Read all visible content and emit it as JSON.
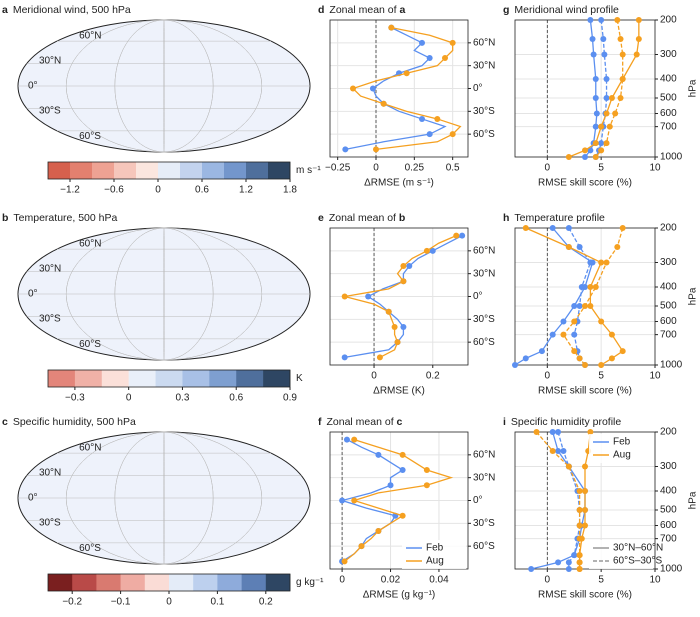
{
  "chart_data": [
    {
      "type": "map",
      "label": "a",
      "title": "Meridional wind, 500 hPa",
      "lat_labels": [
        "60°N",
        "30°N",
        "0°",
        "30°S",
        "60°S"
      ],
      "colorbar": {
        "clim": [
          -1.5,
          1.8
        ],
        "colors": [
          "#d6604d",
          "#e3806f",
          "#eea293",
          "#f6c6bb",
          "#fbe6df",
          "#e6edf8",
          "#c3d3ee",
          "#9bb7e2",
          "#7396cc",
          "#4f6f9c",
          "#2e4663"
        ],
        "ticks": [
          {
            "value": -1.2,
            "label": "−1.2"
          },
          {
            "value": -0.6,
            "label": "−0.6"
          },
          0,
          0.6,
          1.2,
          1.8
        ],
        "unit": "m s⁻¹"
      }
    },
    {
      "type": "map",
      "label": "b",
      "title": "Temperature, 500 hPa",
      "lat_labels": [
        "60°N",
        "30°N",
        "0°",
        "30°S",
        "60°S"
      ],
      "colorbar": {
        "clim": [
          -0.45,
          0.9
        ],
        "colors": [
          "#e3857a",
          "#f0b1a7",
          "#fbe0d9",
          "#e9eff9",
          "#cbdaf0",
          "#a8c0e6",
          "#7e9fd0",
          "#4f6f9c",
          "#2e4663"
        ],
        "ticks": [
          {
            "value": -0.3,
            "label": "−0.3"
          },
          0,
          0.3,
          0.6,
          0.9
        ],
        "unit": "K"
      }
    },
    {
      "type": "map",
      "label": "c",
      "title": "Specific humidity, 500 hPa",
      "lat_labels": [
        "60°N",
        "30°N",
        "0°",
        "30°S",
        "60°S"
      ],
      "colorbar": {
        "clim": [
          -0.25,
          0.25
        ],
        "colors": [
          "#7a1f1f",
          "#b94a48",
          "#d97a70",
          "#efaca3",
          "#fadcd6",
          "#e4ecf8",
          "#bdd0ee",
          "#8eabdb",
          "#5d7fb5",
          "#2e4663"
        ],
        "ticks": [
          {
            "value": -0.2,
            "label": "−0.2"
          },
          {
            "value": -0.1,
            "label": "−0.1"
          },
          0,
          0.1,
          0.2
        ],
        "unit": "g kg⁻¹"
      }
    },
    {
      "type": "line",
      "label": "d",
      "title": "Zonal mean of ",
      "ref": "a",
      "xlabel": "ΔRMSE (m s⁻¹)",
      "zero_line": true,
      "xlim": [
        -0.3,
        0.6
      ],
      "xticks": [
        {
          "value": -0.25,
          "label": "−0.25"
        },
        0,
        0.25,
        0.5
      ],
      "y": [
        -80,
        -70,
        -60,
        -50,
        -40,
        -30,
        -20,
        -10,
        0,
        10,
        20,
        30,
        40,
        50,
        60,
        70,
        80
      ],
      "ylim": [
        -90,
        90
      ],
      "yticks": [
        {
          "value": -60,
          "label": "60°S"
        },
        {
          "value": -30,
          "label": "30°S"
        },
        {
          "value": 0,
          "label": "0°"
        },
        {
          "value": 30,
          "label": "30°N"
        },
        {
          "value": 60,
          "label": "60°N"
        }
      ],
      "series": [
        {
          "color": "#5b8ff0",
          "values": [
            -0.2,
            0.05,
            0.35,
            0.45,
            0.3,
            0.15,
            0.05,
            0.0,
            -0.02,
            0.05,
            0.15,
            0.3,
            0.35,
            0.25,
            0.3,
            0.2,
            0.1
          ]
        },
        {
          "color": "#f5a020",
          "values": [
            0.0,
            0.4,
            0.5,
            0.55,
            0.4,
            0.2,
            0.05,
            -0.1,
            -0.15,
            0.0,
            0.2,
            0.4,
            0.45,
            0.5,
            0.5,
            0.35,
            0.1
          ]
        }
      ]
    },
    {
      "type": "line",
      "label": "e",
      "title": "Zonal mean of ",
      "ref": "b",
      "xlabel": "ΔRMSE (K)",
      "zero_line": true,
      "xlim": [
        -0.15,
        0.32
      ],
      "xticks": [
        0,
        0.2
      ],
      "y": [
        -80,
        -70,
        -60,
        -50,
        -40,
        -30,
        -20,
        -10,
        0,
        10,
        20,
        30,
        40,
        50,
        60,
        70,
        80
      ],
      "ylim": [
        -90,
        90
      ],
      "yticks": [
        {
          "value": -60,
          "label": "60°S"
        },
        {
          "value": -30,
          "label": "30°S"
        },
        {
          "value": 0,
          "label": "0°"
        },
        {
          "value": 30,
          "label": "30°N"
        },
        {
          "value": 60,
          "label": "60°N"
        }
      ],
      "series": [
        {
          "color": "#5b8ff0",
          "values": [
            -0.1,
            0.05,
            0.08,
            0.1,
            0.1,
            0.08,
            0.05,
            0.02,
            -0.02,
            0.03,
            0.1,
            0.1,
            0.12,
            0.15,
            0.2,
            0.25,
            0.3
          ]
        },
        {
          "color": "#f5a020",
          "values": [
            0.02,
            0.07,
            0.08,
            0.07,
            0.07,
            0.06,
            0.05,
            0.0,
            -0.1,
            0.05,
            0.1,
            0.08,
            0.1,
            0.13,
            0.18,
            0.22,
            0.28
          ]
        }
      ]
    },
    {
      "type": "line",
      "label": "f",
      "title": "Zonal mean of ",
      "ref": "c",
      "xlabel": "ΔRMSE (g kg⁻¹)",
      "zero_line": true,
      "xlim": [
        -0.005,
        0.052
      ],
      "xticks": [
        0,
        0.02,
        0.04
      ],
      "y": [
        -80,
        -70,
        -60,
        -50,
        -40,
        -30,
        -20,
        -10,
        0,
        10,
        20,
        30,
        40,
        50,
        60,
        70,
        80
      ],
      "ylim": [
        -90,
        90
      ],
      "yticks": [
        {
          "value": -60,
          "label": "60°S"
        },
        {
          "value": -30,
          "label": "30°S"
        },
        {
          "value": 0,
          "label": "0°"
        },
        {
          "value": 30,
          "label": "30°N"
        },
        {
          "value": 60,
          "label": "60°N"
        }
      ],
      "series": [
        {
          "color": "#5b8ff0",
          "values": [
            0.0,
            0.005,
            0.008,
            0.01,
            0.015,
            0.02,
            0.022,
            0.01,
            0.0,
            0.012,
            0.02,
            0.02,
            0.025,
            0.02,
            0.015,
            0.008,
            0.002
          ]
        },
        {
          "color": "#f5a020",
          "values": [
            0.001,
            0.005,
            0.008,
            0.012,
            0.015,
            0.02,
            0.025,
            0.015,
            0.005,
            0.015,
            0.035,
            0.045,
            0.035,
            0.03,
            0.025,
            0.015,
            0.005
          ]
        }
      ],
      "legend": {
        "corner": "lower-right",
        "entries": [
          {
            "label": "Feb",
            "color": "#5b8ff0",
            "dash": false
          },
          {
            "label": "Aug",
            "color": "#f5a020",
            "dash": false
          }
        ]
      }
    },
    {
      "type": "line",
      "label": "g",
      "title": "Meridional wind profile",
      "xlabel": "RMSE skill score (%)",
      "ylabel": "hPa",
      "zero_line": true,
      "ylog": true,
      "xlim": [
        -3,
        10
      ],
      "xticks": [
        0,
        5,
        10
      ],
      "y": [
        200,
        250,
        300,
        400,
        500,
        600,
        700,
        850,
        925,
        1000
      ],
      "ylim": [
        1000,
        200
      ],
      "yticks": [
        200,
        300,
        400,
        500,
        600,
        700,
        1000
      ],
      "series": [
        {
          "color": "#5b8ff0",
          "dash": false,
          "values": [
            4,
            4.2,
            4.3,
            4.5,
            4.5,
            4.6,
            4.5,
            4.3,
            4.0,
            3.5
          ]
        },
        {
          "color": "#5b8ff0",
          "dash": true,
          "values": [
            5,
            5.2,
            5.3,
            5.5,
            5.5,
            5.4,
            5.2,
            5,
            4.8,
            4.5
          ]
        },
        {
          "color": "#f5a020",
          "dash": false,
          "values": [
            8.5,
            8.5,
            8.3,
            7,
            6,
            5.5,
            5,
            4.5,
            3.5,
            2
          ]
        },
        {
          "color": "#f5a020",
          "dash": true,
          "values": [
            6.5,
            6.8,
            7,
            7,
            6.8,
            6.3,
            5.8,
            5.5,
            5.0,
            4.5
          ]
        }
      ]
    },
    {
      "type": "line",
      "label": "h",
      "title": "Temperature profile",
      "xlabel": "RMSE skill score (%)",
      "ylabel": "hPa",
      "zero_line": true,
      "ylog": true,
      "xlim": [
        -3,
        10
      ],
      "xticks": [
        0,
        5,
        10
      ],
      "y": [
        200,
        250,
        300,
        400,
        500,
        600,
        700,
        850,
        925,
        1000
      ],
      "ylim": [
        1000,
        200
      ],
      "yticks": [
        200,
        300,
        400,
        500,
        600,
        700,
        1000
      ],
      "series": [
        {
          "color": "#5b8ff0",
          "dash": false,
          "values": [
            0.5,
            2,
            4.2,
            3.5,
            2.5,
            1.5,
            0.5,
            -0.5,
            -2,
            -3
          ]
        },
        {
          "color": "#5b8ff0",
          "dash": true,
          "values": [
            2,
            3,
            4,
            3.2,
            3,
            2.8,
            2.5,
            2.8,
            3,
            3.5
          ]
        },
        {
          "color": "#f5a020",
          "dash": false,
          "values": [
            -2,
            2,
            5,
            4,
            4,
            5,
            6,
            7,
            6,
            5
          ]
        },
        {
          "color": "#f5a020",
          "dash": true,
          "values": [
            7,
            6.5,
            5.5,
            4.5,
            3.5,
            2.5,
            1.5,
            2.5,
            3,
            3.5
          ]
        }
      ]
    },
    {
      "type": "line",
      "label": "i",
      "title": "Specific humidity profile",
      "xlabel": "RMSE skill score (%)",
      "ylabel": "hPa",
      "zero_line": true,
      "ylog": true,
      "xlim": [
        -3,
        10
      ],
      "xticks": [
        0,
        5,
        10
      ],
      "y": [
        200,
        250,
        300,
        400,
        500,
        600,
        700,
        850,
        925,
        1000
      ],
      "ylim": [
        1000,
        200
      ],
      "yticks": [
        200,
        300,
        400,
        500,
        600,
        700,
        1000
      ],
      "series": [
        {
          "color": "#5b8ff0",
          "dash": false,
          "values": [
            0.5,
            1,
            2,
            3.5,
            3.5,
            3.2,
            3,
            2.5,
            1,
            -1.5
          ]
        },
        {
          "color": "#5b8ff0",
          "dash": true,
          "values": [
            1,
            1.5,
            2,
            2.8,
            3,
            3,
            2.8,
            2.5,
            2,
            2
          ]
        },
        {
          "color": "#f5a020",
          "dash": false,
          "values": [
            4,
            3.8,
            3.5,
            3.5,
            3.5,
            3.5,
            3.2,
            3,
            3,
            3
          ]
        },
        {
          "color": "#f5a020",
          "dash": true,
          "values": [
            -1,
            0.5,
            2,
            3,
            3,
            3,
            3,
            3,
            3,
            3
          ]
        }
      ],
      "legend": {
        "corner": "upper-right",
        "entries": [
          {
            "label": "Feb",
            "color": "#5b8ff0",
            "dash": false
          },
          {
            "label": "Aug",
            "color": "#f5a020",
            "dash": false
          }
        ]
      },
      "legend2": {
        "corner": "lower-right",
        "entries": [
          {
            "label": "30°N–60°N",
            "color": "#999999",
            "dash": false
          },
          {
            "label": "60°S–30°S",
            "color": "#999999",
            "dash": true
          }
        ]
      }
    }
  ]
}
